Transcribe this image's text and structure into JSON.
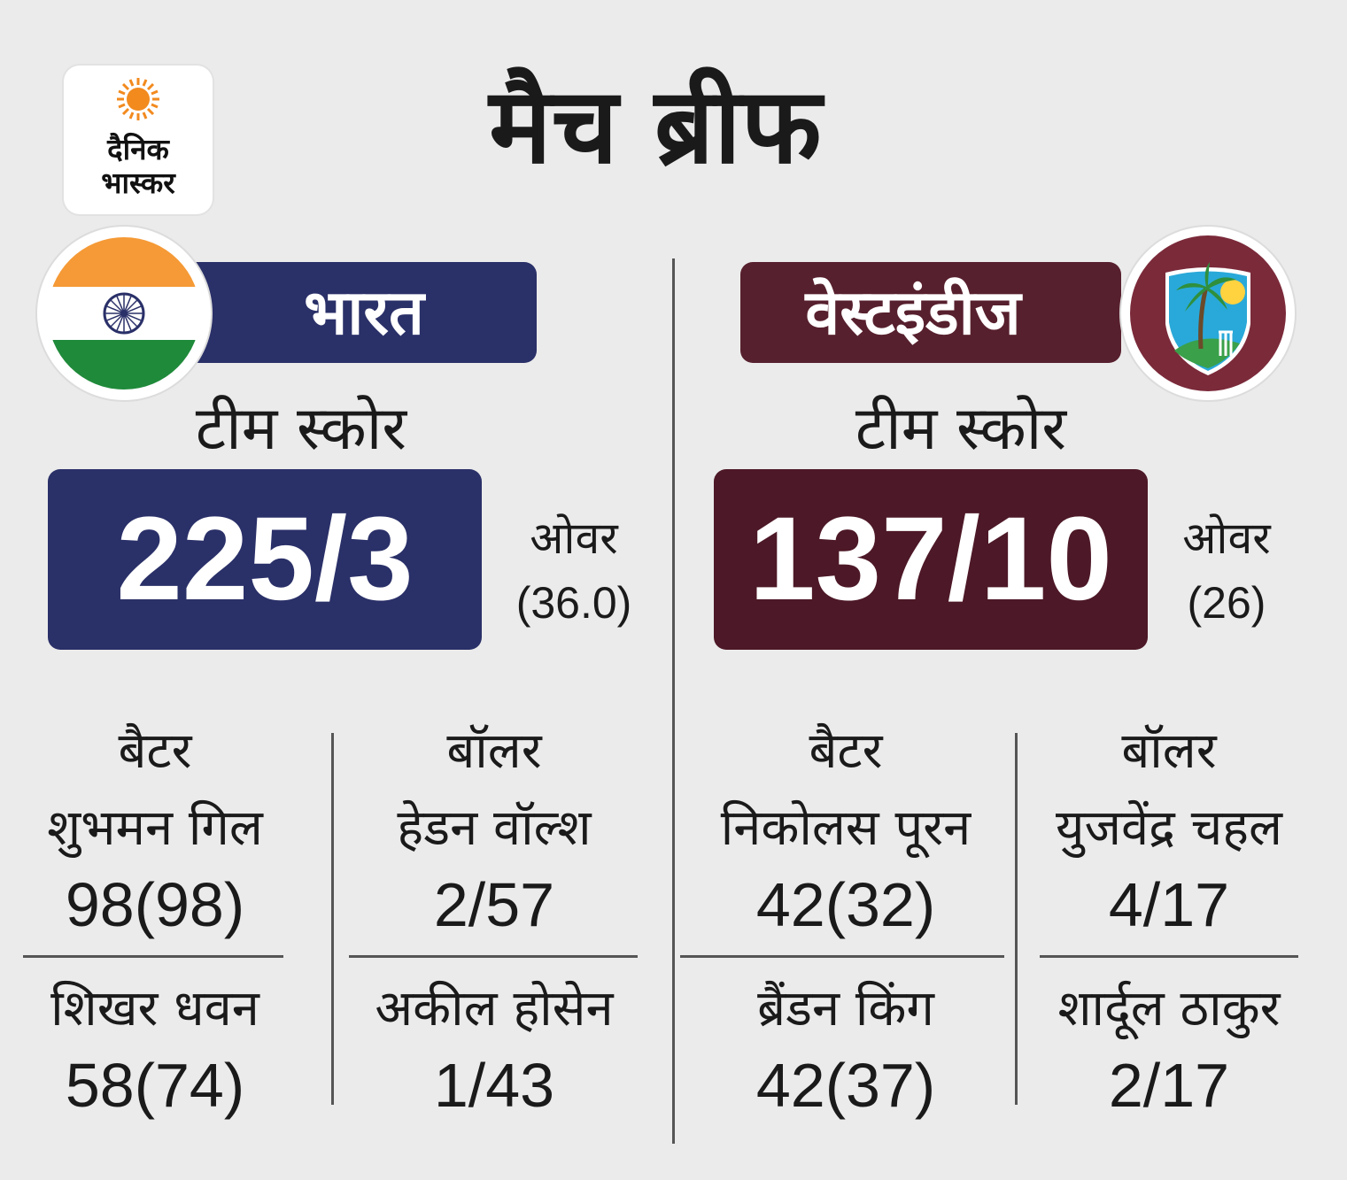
{
  "logo": {
    "line1": "दैनिक",
    "line2": "भास्कर"
  },
  "title": "मैच ब्रीफ",
  "india": {
    "name": "भारत",
    "score_label": "टीम स्कोर",
    "score": "225/3",
    "overs_label": "ओवर",
    "overs": "(36.0)",
    "batter_head": "बैटर",
    "bowler_head": "बॉलर",
    "batters": [
      {
        "name": "शुभमन गिल",
        "stat": "98(98)"
      },
      {
        "name": "शिखर धवन",
        "stat": "58(74)"
      }
    ],
    "bowlers": [
      {
        "name": "हेडन वॉल्श",
        "stat": "2/57"
      },
      {
        "name": "अकील होसेन",
        "stat": "1/43"
      }
    ]
  },
  "westindies": {
    "name": "वेस्टइंडीज",
    "score_label": "टीम स्कोर",
    "score": "137/10",
    "overs_label": "ओवर",
    "overs": "(26)",
    "batter_head": "बैटर",
    "bowler_head": "बॉलर",
    "batters": [
      {
        "name": "निकोलस पूरन",
        "stat": "42(32)"
      },
      {
        "name": "ब्रैंडन किंग",
        "stat": "42(37)"
      }
    ],
    "bowlers": [
      {
        "name": "युजवेंद्र चहल",
        "stat": "4/17"
      },
      {
        "name": "शार्दूल ठाकुर",
        "stat": "2/17"
      }
    ]
  },
  "colors": {
    "india_navy": "#2a3068",
    "wi_maroon": "#57202e",
    "wi_score_maroon": "#4d1827",
    "saffron": "#f59a36",
    "green": "#1f8a3a",
    "background": "#ebebeb"
  },
  "icons": {
    "logo_sun": "sun-icon",
    "india_flag": "india-flag-icon",
    "wi_emblem": "west-indies-emblem-icon"
  }
}
